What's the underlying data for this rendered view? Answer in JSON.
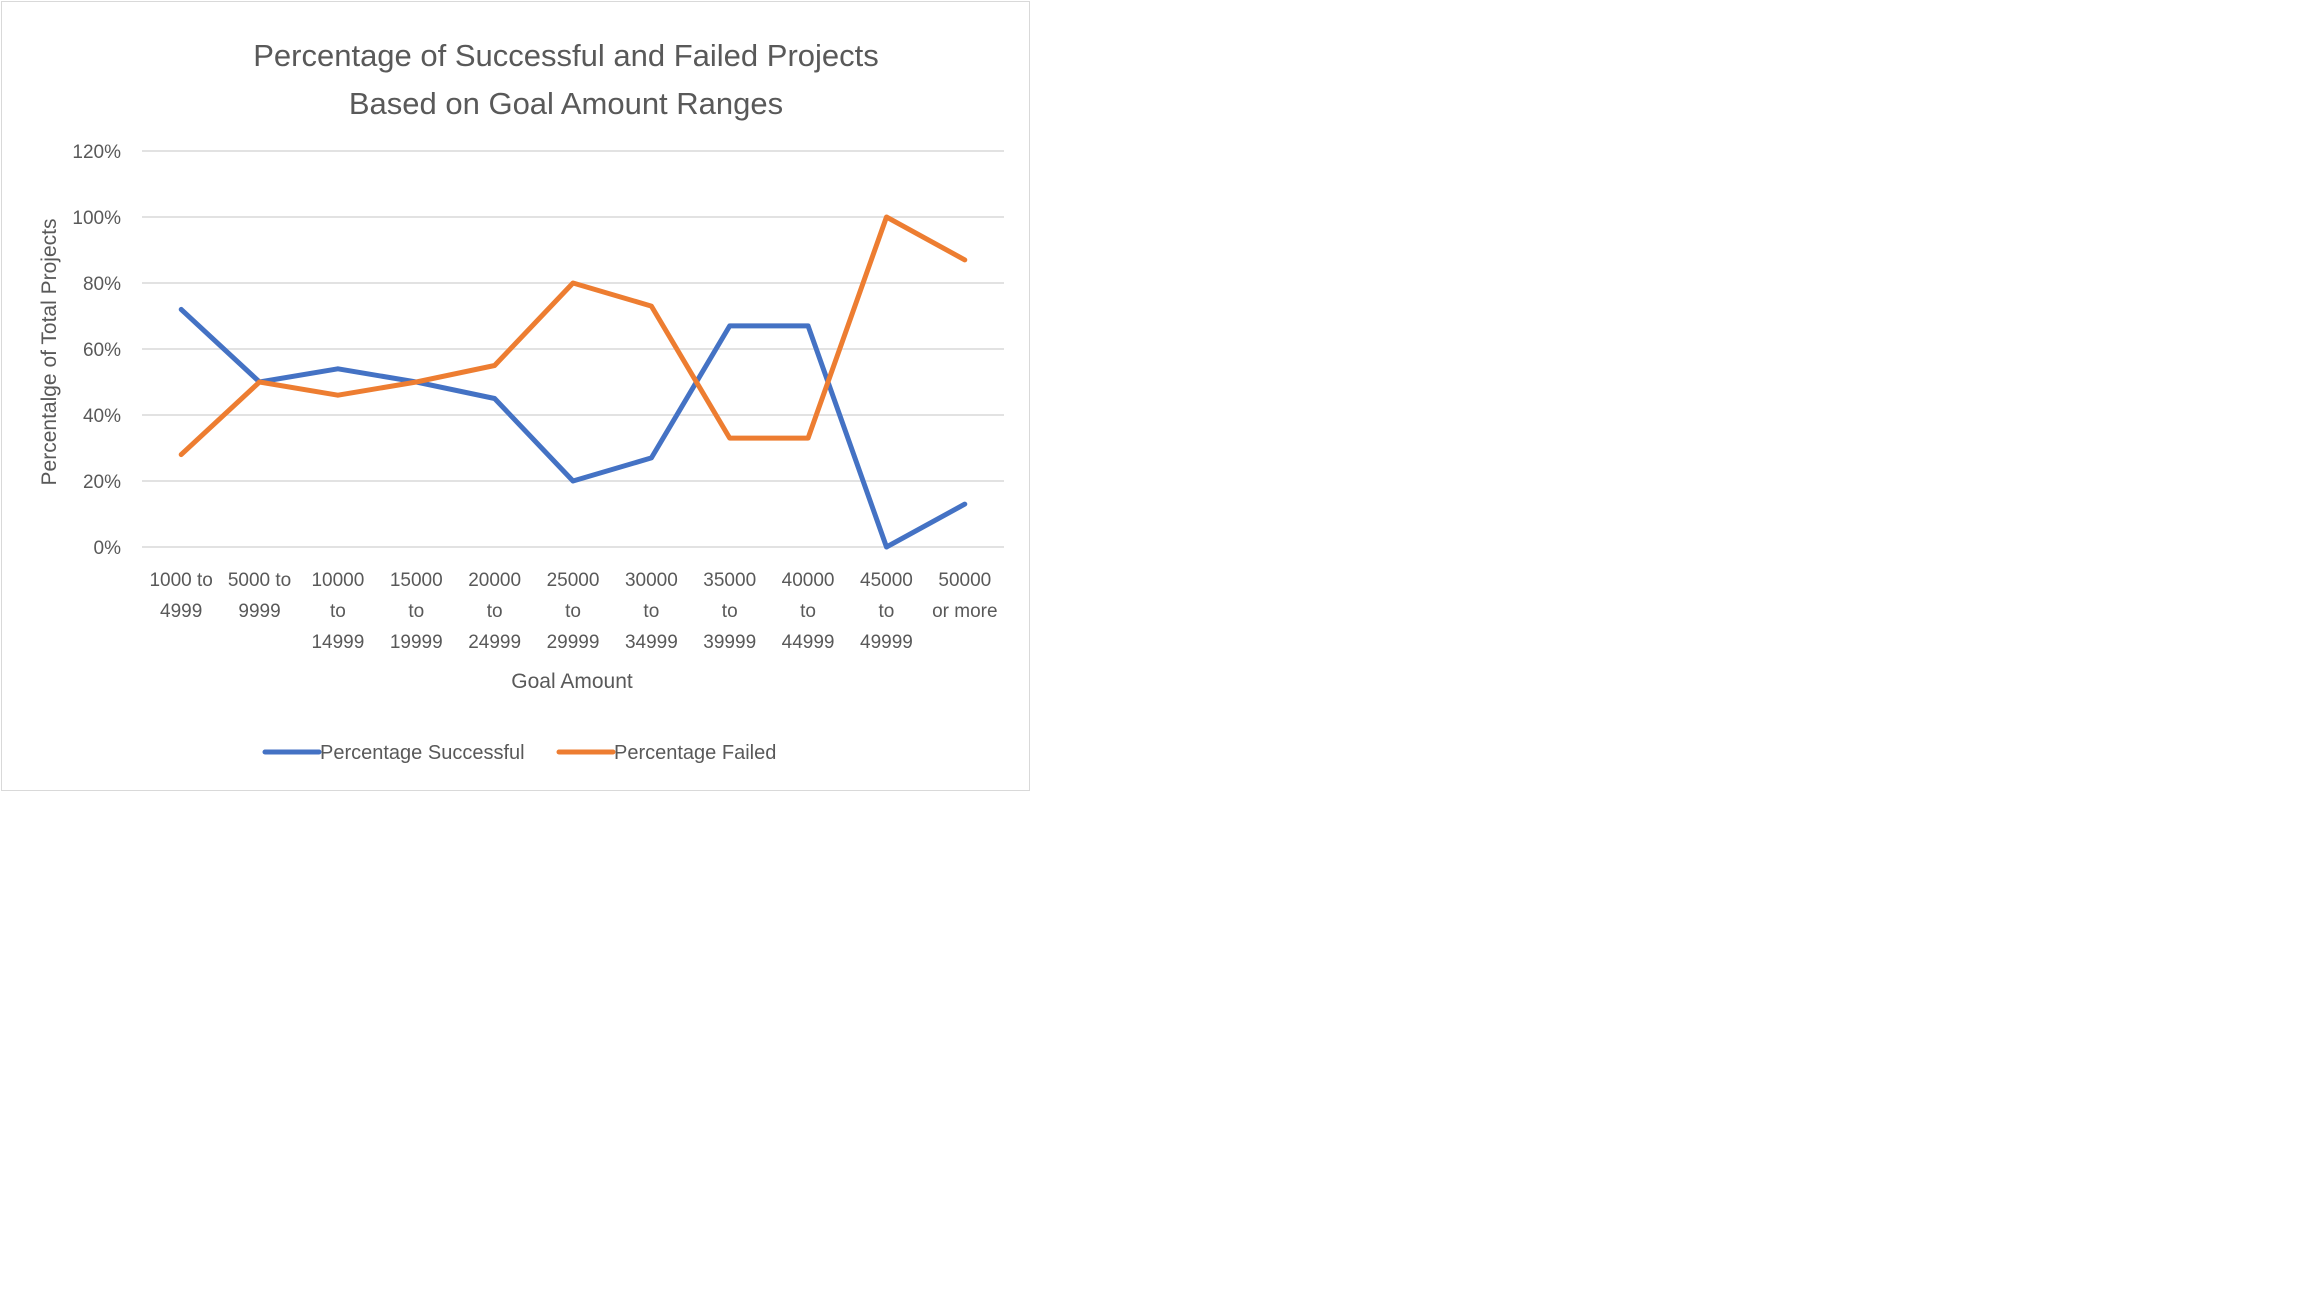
{
  "chart_data": {
    "type": "line",
    "title": [
      "Percentage of Successful and Failed Projects",
      "Based on Goal Amount Ranges"
    ],
    "xlabel": "Goal Amount",
    "ylabel": "Percentalge of Total Projects",
    "ylim": [
      0,
      1.2
    ],
    "y_ticks": [
      0,
      0.2,
      0.4,
      0.6,
      0.8,
      1.0,
      1.2
    ],
    "y_tick_labels": [
      "0%",
      "20%",
      "40%",
      "60%",
      "80%",
      "100%",
      "120%"
    ],
    "grid": true,
    "legend_position": "bottom",
    "categories": [
      [
        "1000 to",
        "4999"
      ],
      [
        "5000 to",
        "9999"
      ],
      [
        "10000",
        "to",
        "14999"
      ],
      [
        "15000",
        "to",
        "19999"
      ],
      [
        "20000",
        "to",
        "24999"
      ],
      [
        "25000",
        "to",
        "29999"
      ],
      [
        "30000",
        "to",
        "34999"
      ],
      [
        "35000",
        "to",
        "39999"
      ],
      [
        "40000",
        "to",
        "44999"
      ],
      [
        "45000",
        "to",
        "49999"
      ],
      [
        "50000",
        "or more"
      ]
    ],
    "series": [
      {
        "name": "Percentage Successful",
        "color": "#4472c4",
        "values": [
          0.72,
          0.5,
          0.54,
          0.5,
          0.45,
          0.2,
          0.27,
          0.67,
          0.67,
          0.0,
          0.13
        ]
      },
      {
        "name": "Percentage Failed",
        "color": "#ed7d31",
        "values": [
          0.28,
          0.5,
          0.46,
          0.5,
          0.55,
          0.8,
          0.73,
          0.33,
          0.33,
          1.0,
          0.87
        ]
      }
    ],
    "grid_color": "#d9d9d9",
    "text_color": "#595959"
  }
}
